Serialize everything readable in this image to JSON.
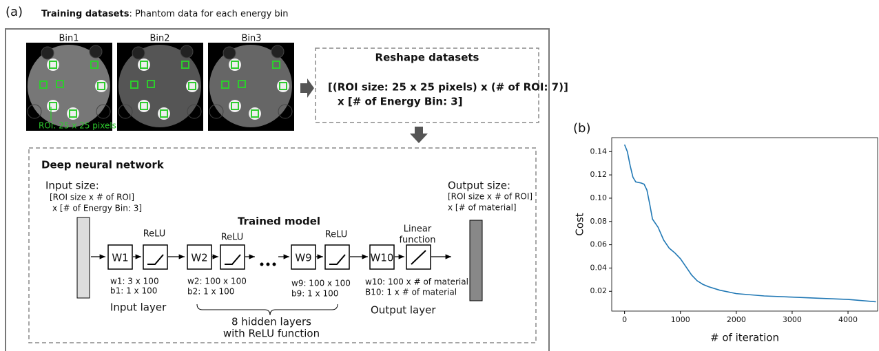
{
  "panel_a": {
    "label": "(a)",
    "heading_bold": "Training datasets",
    "heading_rest": ": Phantom data for each energy bin",
    "bins": [
      "Bin1",
      "Bin2",
      "Bin3"
    ],
    "roi_note": "ROI: 25 x 25 pixels",
    "reshape": {
      "title": "Reshape datasets",
      "line1": "[(ROI size: 25 x 25 pixels) x (# of ROI: 7)]",
      "line2": "x [# of Energy Bin: 3]"
    },
    "dnn": {
      "title": "Deep neural network",
      "input_size": "Input size:",
      "input_desc1": "[ROI size x # of ROI]",
      "input_desc2": "x [# of Energy Bin: 3]",
      "output_size": "Output size:",
      "output_desc1": "[ROI size x # of ROI]",
      "output_desc2": "x [# of material]",
      "trained_model": "Trained model",
      "weights": [
        "W1",
        "W2",
        "W9",
        "W10"
      ],
      "activations": [
        "ReLU",
        "ReLU",
        "ReLU"
      ],
      "linear": [
        "Linear",
        "function"
      ],
      "notes": [
        [
          "w1: 3 x 100",
          "b1: 1 x 100"
        ],
        [
          "w2: 100 x 100",
          "b2: 1 x 100"
        ],
        [
          "w9: 100 x 100",
          "b9: 1 x 100"
        ],
        [
          "w10: 100 x # of material",
          "B10: 1 x # of material"
        ]
      ],
      "input_layer": "Input layer",
      "output_layer": "Output layer",
      "hidden": [
        "8 hidden layers",
        "with ReLU function"
      ]
    }
  },
  "panel_b_label": "(b)",
  "chart_data": {
    "type": "line",
    "x_label": "# of iteration",
    "y_label": "Cost",
    "x": [
      0,
      50,
      100,
      150,
      200,
      300,
      350,
      400,
      450,
      500,
      600,
      700,
      800,
      900,
      1000,
      1100,
      1200,
      1300,
      1400,
      1500,
      1700,
      2000,
      2500,
      3000,
      3500,
      4000,
      4500
    ],
    "values": [
      0.146,
      0.14,
      0.128,
      0.118,
      0.114,
      0.113,
      0.112,
      0.107,
      0.095,
      0.082,
      0.075,
      0.064,
      0.057,
      0.053,
      0.048,
      0.041,
      0.034,
      0.029,
      0.026,
      0.024,
      0.021,
      0.018,
      0.016,
      0.015,
      0.014,
      0.013,
      0.011
    ],
    "color": "#1f77b4",
    "xlim": [
      -230,
      4530
    ],
    "ylim": [
      0.003,
      0.152
    ],
    "xticks": [
      0,
      1000,
      2000,
      3000,
      4000
    ],
    "yticks": [
      0.02,
      0.04,
      0.06,
      0.08,
      {
        "value": 0.1,
        "label": "0.10"
      },
      0.12,
      0.14
    ],
    "grid": false
  }
}
